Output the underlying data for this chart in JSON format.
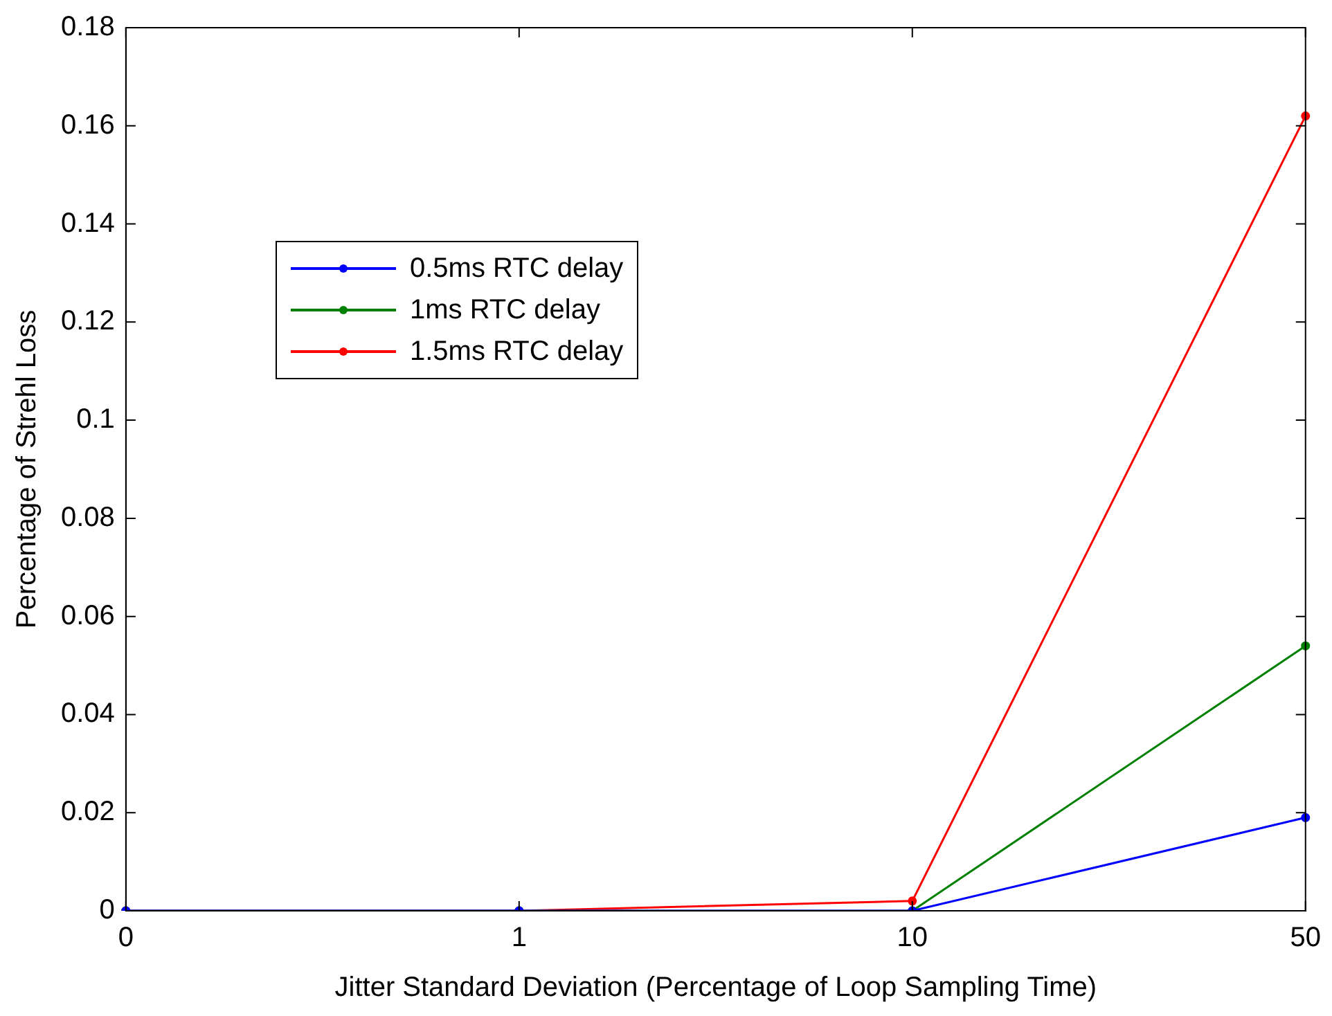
{
  "chart_data": {
    "type": "line",
    "xlabel": "Jitter Standard Deviation (Percentage of Loop Sampling Time)",
    "ylabel": "Percentage of Strehl Loss",
    "categories": [
      "0",
      "1",
      "10",
      "50"
    ],
    "series": [
      {
        "name": "0.5ms RTC delay",
        "color": "#0000ff",
        "values": [
          0,
          0,
          0,
          0.019
        ]
      },
      {
        "name": "1ms RTC delay",
        "color": "#008000",
        "values": [
          0,
          0,
          0,
          0.054
        ]
      },
      {
        "name": "1.5ms RTC delay",
        "color": "#ff0000",
        "values": [
          0,
          0,
          0.002,
          0.162
        ]
      }
    ],
    "ylim": [
      0,
      0.18
    ],
    "yticks": [
      0,
      0.02,
      0.04,
      0.06,
      0.08,
      0.1,
      0.12,
      0.14,
      0.16,
      0.18
    ],
    "grid": false,
    "legend": "top left",
    "marker": "circle",
    "line_style": "solid"
  }
}
